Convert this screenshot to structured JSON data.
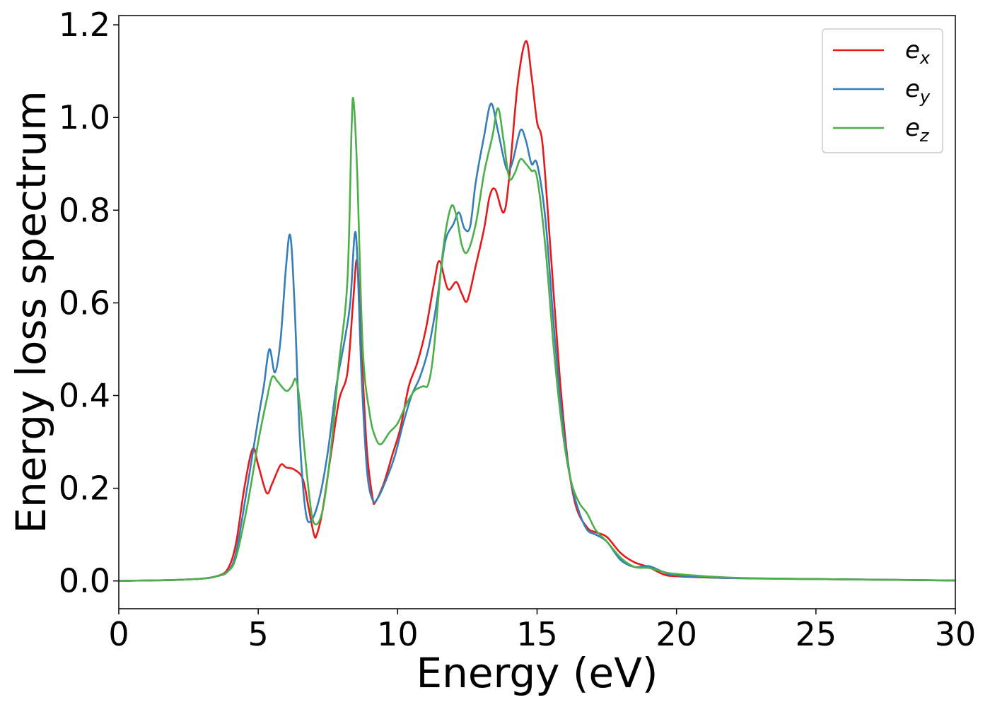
{
  "chart_data": {
    "type": "line",
    "title": "",
    "xlabel": "Energy (eV)",
    "ylabel": "Energy loss spectrum",
    "xlim": [
      0,
      30
    ],
    "ylim": [
      -0.06,
      1.22
    ],
    "xticks": [
      0,
      5,
      10,
      15,
      20,
      25,
      30
    ],
    "yticks": [
      0.0,
      0.2,
      0.4,
      0.6,
      0.8,
      1.0,
      1.2
    ],
    "grid": false,
    "legend_position": "top-right",
    "series": [
      {
        "name": "e",
        "subscript": "x",
        "color": "#e41a1c",
        "points": [
          [
            0,
            0
          ],
          [
            1,
            0.001
          ],
          [
            2,
            0.002
          ],
          [
            3,
            0.005
          ],
          [
            3.5,
            0.01
          ],
          [
            3.9,
            0.025
          ],
          [
            4.2,
            0.08
          ],
          [
            4.5,
            0.2
          ],
          [
            4.8,
            0.285
          ],
          [
            5.0,
            0.25
          ],
          [
            5.3,
            0.19
          ],
          [
            5.5,
            0.21
          ],
          [
            5.8,
            0.25
          ],
          [
            6.0,
            0.245
          ],
          [
            6.3,
            0.24
          ],
          [
            6.6,
            0.22
          ],
          [
            6.8,
            0.16
          ],
          [
            7.0,
            0.1
          ],
          [
            7.1,
            0.1
          ],
          [
            7.3,
            0.15
          ],
          [
            7.6,
            0.27
          ],
          [
            7.9,
            0.39
          ],
          [
            8.2,
            0.45
          ],
          [
            8.4,
            0.6
          ],
          [
            8.55,
            0.69
          ],
          [
            8.7,
            0.5
          ],
          [
            8.9,
            0.28
          ],
          [
            9.1,
            0.18
          ],
          [
            9.2,
            0.17
          ],
          [
            9.5,
            0.21
          ],
          [
            9.8,
            0.27
          ],
          [
            10.1,
            0.33
          ],
          [
            10.4,
            0.42
          ],
          [
            10.7,
            0.47
          ],
          [
            11.0,
            0.54
          ],
          [
            11.3,
            0.64
          ],
          [
            11.5,
            0.69
          ],
          [
            11.8,
            0.63
          ],
          [
            12.1,
            0.645
          ],
          [
            12.3,
            0.62
          ],
          [
            12.5,
            0.605
          ],
          [
            12.8,
            0.68
          ],
          [
            13.1,
            0.76
          ],
          [
            13.3,
            0.83
          ],
          [
            13.5,
            0.845
          ],
          [
            13.8,
            0.795
          ],
          [
            14.0,
            0.87
          ],
          [
            14.3,
            1.07
          ],
          [
            14.6,
            1.165
          ],
          [
            14.8,
            1.09
          ],
          [
            15.0,
            0.99
          ],
          [
            15.2,
            0.94
          ],
          [
            15.5,
            0.7
          ],
          [
            15.8,
            0.45
          ],
          [
            16.1,
            0.26
          ],
          [
            16.4,
            0.16
          ],
          [
            16.8,
            0.115
          ],
          [
            17.1,
            0.105
          ],
          [
            17.5,
            0.095
          ],
          [
            18.0,
            0.06
          ],
          [
            18.5,
            0.04
          ],
          [
            19.0,
            0.03
          ],
          [
            19.5,
            0.015
          ],
          [
            20.0,
            0.01
          ],
          [
            22,
            0.006
          ],
          [
            25,
            0.004
          ],
          [
            30,
            0.001
          ]
        ]
      },
      {
        "name": "e",
        "subscript": "y",
        "color": "#377eb8",
        "points": [
          [
            0,
            0
          ],
          [
            1,
            0.001
          ],
          [
            2,
            0.002
          ],
          [
            3,
            0.005
          ],
          [
            3.5,
            0.01
          ],
          [
            3.9,
            0.02
          ],
          [
            4.2,
            0.06
          ],
          [
            4.6,
            0.2
          ],
          [
            5.0,
            0.35
          ],
          [
            5.2,
            0.42
          ],
          [
            5.4,
            0.5
          ],
          [
            5.6,
            0.45
          ],
          [
            5.8,
            0.52
          ],
          [
            6.0,
            0.68
          ],
          [
            6.15,
            0.745
          ],
          [
            6.3,
            0.6
          ],
          [
            6.5,
            0.3
          ],
          [
            6.7,
            0.15
          ],
          [
            6.9,
            0.13
          ],
          [
            7.2,
            0.18
          ],
          [
            7.5,
            0.28
          ],
          [
            7.8,
            0.42
          ],
          [
            8.1,
            0.52
          ],
          [
            8.3,
            0.6
          ],
          [
            8.5,
            0.75
          ],
          [
            8.7,
            0.45
          ],
          [
            8.9,
            0.24
          ],
          [
            9.1,
            0.175
          ],
          [
            9.3,
            0.18
          ],
          [
            9.6,
            0.22
          ],
          [
            9.9,
            0.27
          ],
          [
            10.2,
            0.34
          ],
          [
            10.5,
            0.4
          ],
          [
            10.8,
            0.44
          ],
          [
            11.1,
            0.5
          ],
          [
            11.4,
            0.6
          ],
          [
            11.7,
            0.73
          ],
          [
            12.0,
            0.77
          ],
          [
            12.2,
            0.795
          ],
          [
            12.4,
            0.76
          ],
          [
            12.6,
            0.765
          ],
          [
            12.8,
            0.86
          ],
          [
            13.1,
            0.96
          ],
          [
            13.35,
            1.03
          ],
          [
            13.6,
            0.97
          ],
          [
            13.9,
            0.89
          ],
          [
            14.1,
            0.9
          ],
          [
            14.4,
            0.972
          ],
          [
            14.6,
            0.95
          ],
          [
            14.8,
            0.9
          ],
          [
            15.0,
            0.9
          ],
          [
            15.3,
            0.78
          ],
          [
            15.6,
            0.55
          ],
          [
            15.9,
            0.35
          ],
          [
            16.2,
            0.22
          ],
          [
            16.5,
            0.15
          ],
          [
            16.8,
            0.11
          ],
          [
            17.1,
            0.1
          ],
          [
            17.5,
            0.085
          ],
          [
            18.0,
            0.045
          ],
          [
            18.5,
            0.03
          ],
          [
            19.0,
            0.032
          ],
          [
            19.5,
            0.02
          ],
          [
            20.0,
            0.012
          ],
          [
            22,
            0.006
          ],
          [
            25,
            0.004
          ],
          [
            30,
            0.001
          ]
        ]
      },
      {
        "name": "e",
        "subscript": "z",
        "color": "#4daf4a",
        "points": [
          [
            0,
            0
          ],
          [
            1,
            0.001
          ],
          [
            2,
            0.002
          ],
          [
            3,
            0.005
          ],
          [
            3.5,
            0.01
          ],
          [
            3.9,
            0.02
          ],
          [
            4.2,
            0.05
          ],
          [
            4.6,
            0.16
          ],
          [
            5.0,
            0.3
          ],
          [
            5.3,
            0.39
          ],
          [
            5.5,
            0.44
          ],
          [
            5.7,
            0.43
          ],
          [
            6.0,
            0.41
          ],
          [
            6.2,
            0.42
          ],
          [
            6.35,
            0.435
          ],
          [
            6.5,
            0.38
          ],
          [
            6.8,
            0.2
          ],
          [
            7.0,
            0.125
          ],
          [
            7.3,
            0.15
          ],
          [
            7.6,
            0.28
          ],
          [
            7.9,
            0.47
          ],
          [
            8.2,
            0.65
          ],
          [
            8.35,
            0.98
          ],
          [
            8.42,
            1.035
          ],
          [
            8.55,
            0.88
          ],
          [
            8.75,
            0.5
          ],
          [
            9.0,
            0.36
          ],
          [
            9.2,
            0.31
          ],
          [
            9.4,
            0.295
          ],
          [
            9.7,
            0.32
          ],
          [
            10.0,
            0.34
          ],
          [
            10.3,
            0.38
          ],
          [
            10.6,
            0.41
          ],
          [
            10.9,
            0.42
          ],
          [
            11.1,
            0.425
          ],
          [
            11.3,
            0.5
          ],
          [
            11.6,
            0.7
          ],
          [
            11.9,
            0.805
          ],
          [
            12.1,
            0.79
          ],
          [
            12.3,
            0.725
          ],
          [
            12.5,
            0.71
          ],
          [
            12.8,
            0.77
          ],
          [
            13.1,
            0.88
          ],
          [
            13.4,
            0.96
          ],
          [
            13.6,
            1.02
          ],
          [
            13.8,
            0.95
          ],
          [
            14.0,
            0.87
          ],
          [
            14.2,
            0.88
          ],
          [
            14.4,
            0.91
          ],
          [
            14.6,
            0.9
          ],
          [
            14.8,
            0.885
          ],
          [
            15.0,
            0.87
          ],
          [
            15.3,
            0.72
          ],
          [
            15.6,
            0.5
          ],
          [
            15.9,
            0.33
          ],
          [
            16.2,
            0.22
          ],
          [
            16.5,
            0.17
          ],
          [
            16.8,
            0.145
          ],
          [
            17.1,
            0.11
          ],
          [
            17.5,
            0.085
          ],
          [
            18.0,
            0.05
          ],
          [
            18.5,
            0.03
          ],
          [
            19.0,
            0.028
          ],
          [
            19.5,
            0.02
          ],
          [
            20.0,
            0.015
          ],
          [
            22,
            0.007
          ],
          [
            25,
            0.004
          ],
          [
            30,
            0.001
          ]
        ]
      }
    ]
  }
}
